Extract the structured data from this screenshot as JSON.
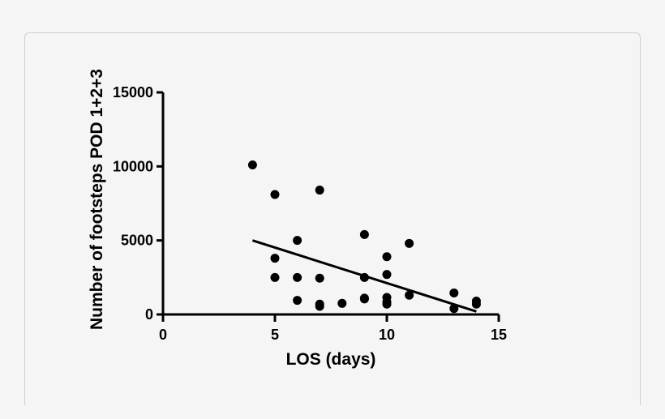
{
  "chart_data": {
    "type": "scatter",
    "title": "",
    "xlabel": "LOS (days)",
    "ylabel": "Number of footsteps POD 1+2+3",
    "xlim": [
      0,
      15
    ],
    "ylim": [
      0,
      15000
    ],
    "xticks": [
      "0",
      "5",
      "10",
      "15"
    ],
    "yticks": [
      "0",
      "5000",
      "10000",
      "15000"
    ],
    "grid": false,
    "points": [
      {
        "x": 4,
        "y": 10100
      },
      {
        "x": 5,
        "y": 8100
      },
      {
        "x": 5,
        "y": 3800
      },
      {
        "x": 5,
        "y": 2500
      },
      {
        "x": 6,
        "y": 5000
      },
      {
        "x": 6,
        "y": 2500
      },
      {
        "x": 6,
        "y": 950
      },
      {
        "x": 7,
        "y": 8400
      },
      {
        "x": 7,
        "y": 2450
      },
      {
        "x": 7,
        "y": 700
      },
      {
        "x": 7,
        "y": 550
      },
      {
        "x": 8,
        "y": 750
      },
      {
        "x": 9,
        "y": 5400
      },
      {
        "x": 9,
        "y": 2500
      },
      {
        "x": 9,
        "y": 1100
      },
      {
        "x": 9,
        "y": 1050
      },
      {
        "x": 10,
        "y": 3900
      },
      {
        "x": 10,
        "y": 2700
      },
      {
        "x": 10,
        "y": 1150
      },
      {
        "x": 10,
        "y": 850
      },
      {
        "x": 10,
        "y": 700
      },
      {
        "x": 11,
        "y": 4800
      },
      {
        "x": 11,
        "y": 1300
      },
      {
        "x": 13,
        "y": 1450
      },
      {
        "x": 13,
        "y": 400
      },
      {
        "x": 14,
        "y": 900
      },
      {
        "x": 14,
        "y": 700
      }
    ],
    "regression_line": {
      "x": [
        4,
        14
      ],
      "y": [
        5000,
        200
      ]
    },
    "colors": {
      "marker": "#000000",
      "line": "#000000",
      "axis": "#000000"
    }
  }
}
